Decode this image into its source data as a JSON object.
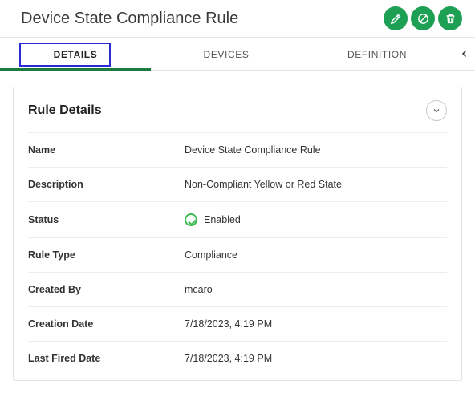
{
  "header": {
    "title": "Device State Compliance Rule"
  },
  "tabs": [
    {
      "label": "DETAILS",
      "active": true,
      "highlighted": true
    },
    {
      "label": "DEVICES",
      "active": false,
      "highlighted": false
    },
    {
      "label": "DEFINITION",
      "active": false,
      "highlighted": false
    }
  ],
  "card": {
    "title": "Rule Details",
    "rows": [
      {
        "label": "Name",
        "value": "Device State Compliance Rule"
      },
      {
        "label": "Description",
        "value": "Non-Compliant Yellow or Red State"
      },
      {
        "label": "Status",
        "value": "Enabled",
        "status_icon": true
      },
      {
        "label": "Rule Type",
        "value": "Compliance"
      },
      {
        "label": "Created By",
        "value": "mcaro"
      },
      {
        "label": "Creation Date",
        "value": "7/18/2023, 4:19 PM"
      },
      {
        "label": "Last Fired Date",
        "value": "7/18/2023, 4:19 PM"
      }
    ]
  },
  "colors": {
    "accent_green": "#1d9f54",
    "tab_underline": "#1d7a40",
    "highlight_border": "#2a2bd6",
    "status_green": "#3cb94f",
    "border": "#e4e4e4"
  }
}
